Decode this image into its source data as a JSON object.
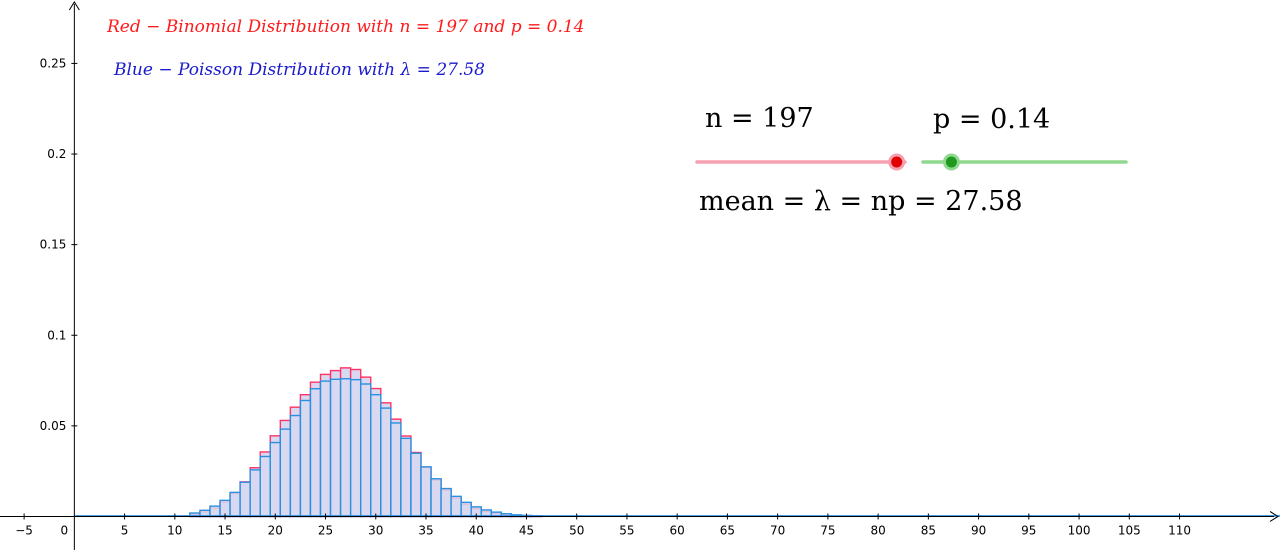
{
  "chart_data": {
    "type": "bar",
    "title": "",
    "xlabel": "",
    "ylabel": "",
    "xlim": [
      -7.4,
      120
    ],
    "ylim": [
      -0.0185,
      0.285
    ],
    "x_ticks": [
      -5,
      0,
      5,
      10,
      15,
      20,
      25,
      30,
      35,
      40,
      45,
      50,
      55,
      60,
      65,
      70,
      75,
      80,
      85,
      90,
      95,
      100,
      105,
      110
    ],
    "x_tick_labels": [
      "−5",
      "0",
      "5",
      "10",
      "15",
      "20",
      "25",
      "30",
      "35",
      "40",
      "45",
      "50",
      "55",
      "60",
      "65",
      "70",
      "75",
      "80",
      "85",
      "90",
      "95",
      "100",
      "105",
      "110"
    ],
    "y_ticks": [
      0.05,
      0.1,
      0.15,
      0.2,
      0.25
    ],
    "y_tick_labels": [
      "0.05",
      "0.1",
      "0.15",
      "0.2",
      "0.25"
    ],
    "grid": false,
    "legend_position": "top-left",
    "colors": {
      "binomial": "#ff3366",
      "poisson": "#2b8fe0",
      "bar_fill": "#d8d8f0",
      "legend_red": "#ff1a1a",
      "legend_blue": "#1a1acc",
      "axis": "#2b8fe0"
    },
    "series": [
      {
        "name": "Binomial",
        "x": [
          12,
          13,
          14,
          15,
          16,
          17,
          18,
          19,
          20,
          21,
          22,
          23,
          24,
          25,
          26,
          27,
          28,
          29,
          30,
          31,
          32,
          33,
          34,
          35,
          36,
          37,
          38,
          39,
          40,
          41,
          42,
          43,
          44,
          45,
          46
        ],
        "values": [
          0.0012,
          0.0025,
          0.0046,
          0.0079,
          0.0127,
          0.0191,
          0.0269,
          0.0356,
          0.0445,
          0.053,
          0.0603,
          0.0672,
          0.0741,
          0.0784,
          0.0805,
          0.082,
          0.0811,
          0.0769,
          0.0706,
          0.0627,
          0.0537,
          0.0444,
          0.0353,
          0.0271,
          0.0202,
          0.0145,
          0.0101,
          0.0068,
          0.0044,
          0.0028,
          0.0017,
          0.001,
          0.0006,
          0.0003,
          0.0002
        ]
      },
      {
        "name": "Poisson",
        "x": [
          12,
          13,
          14,
          15,
          16,
          17,
          18,
          19,
          20,
          21,
          22,
          23,
          24,
          25,
          26,
          27,
          28,
          29,
          30,
          31,
          32,
          33,
          34,
          35,
          36,
          37,
          38,
          39,
          40,
          41,
          42,
          43,
          44,
          45,
          46
        ],
        "values": [
          0.0019,
          0.0034,
          0.0057,
          0.0089,
          0.0133,
          0.0189,
          0.0257,
          0.0331,
          0.0408,
          0.0482,
          0.0557,
          0.064,
          0.0705,
          0.0747,
          0.0757,
          0.076,
          0.0755,
          0.0731,
          0.0672,
          0.0598,
          0.0516,
          0.0431,
          0.0349,
          0.0274,
          0.0208,
          0.0154,
          0.0111,
          0.0078,
          0.0053,
          0.0036,
          0.0024,
          0.0015,
          0.0009,
          0.0006,
          0.0004
        ]
      }
    ],
    "annotations": {
      "legend_binomial": "Red − Binomial Distribution with n = 197 and p = 0.14",
      "legend_poisson": "Blue − Poisson Distribution with λ = 27.58"
    }
  },
  "sliders": {
    "n": {
      "label": "n = 197",
      "value": 197,
      "fraction": 0.96,
      "color": "#ff3366",
      "track_color": "#f5a0b0"
    },
    "p": {
      "label": "p = 0.14",
      "value": 0.14,
      "fraction": 0.14,
      "color": "#1f9a1f",
      "track_color": "#90d890"
    }
  },
  "mean_label": "mean = λ = np = 27.58"
}
